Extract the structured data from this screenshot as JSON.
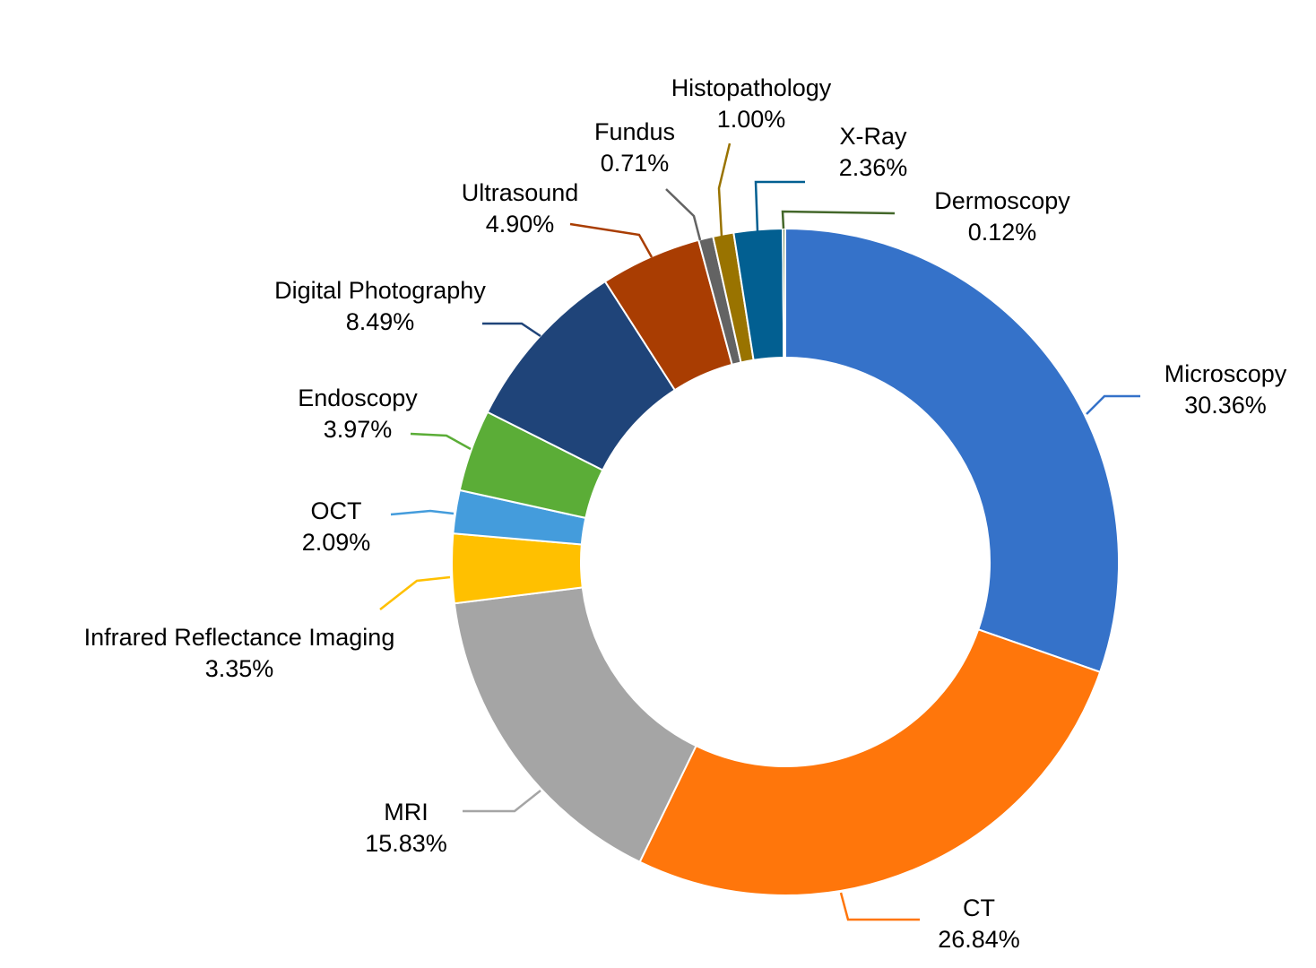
{
  "chart_data": {
    "type": "pie",
    "variant": "doughnut",
    "title": "",
    "legend": "none",
    "series": [
      {
        "values": [
          30.36,
          26.84,
          15.83,
          3.35,
          2.09,
          3.97,
          8.49,
          4.9,
          0.71,
          1.0,
          2.36,
          0.12
        ]
      }
    ],
    "slices": [
      {
        "label": "Microscopy",
        "value": 30.36,
        "value_label": "30.36%",
        "color": "#3572C9"
      },
      {
        "label": "CT",
        "value": 26.84,
        "value_label": "26.84%",
        "color": "#FF760B"
      },
      {
        "label": "MRI",
        "value": 15.83,
        "value_label": "15.83%",
        "color": "#A5A5A5"
      },
      {
        "label": "Infrared Reflectance Imaging",
        "value": 3.35,
        "value_label": "3.35%",
        "color": "#FFC000"
      },
      {
        "label": "OCT",
        "value": 2.09,
        "value_label": "2.09%",
        "color": "#449CDC"
      },
      {
        "label": "Endoscopy",
        "value": 3.97,
        "value_label": "3.97%",
        "color": "#5BAD37"
      },
      {
        "label": "Digital Photography",
        "value": 8.49,
        "value_label": "8.49%",
        "color": "#1F4479"
      },
      {
        "label": "Ultrasound",
        "value": 4.9,
        "value_label": "4.90%",
        "color": "#A93D02"
      },
      {
        "label": "Fundus",
        "value": 0.71,
        "value_label": "0.71%",
        "color": "#636363"
      },
      {
        "label": "Histopathology",
        "value": 1.0,
        "value_label": "1.00%",
        "color": "#997300"
      },
      {
        "label": "X-Ray",
        "value": 2.36,
        "value_label": "2.36%",
        "color": "#025F91"
      },
      {
        "label": "Dermoscopy",
        "value": 0.12,
        "value_label": "0.12%",
        "color": "#43672A"
      }
    ]
  }
}
